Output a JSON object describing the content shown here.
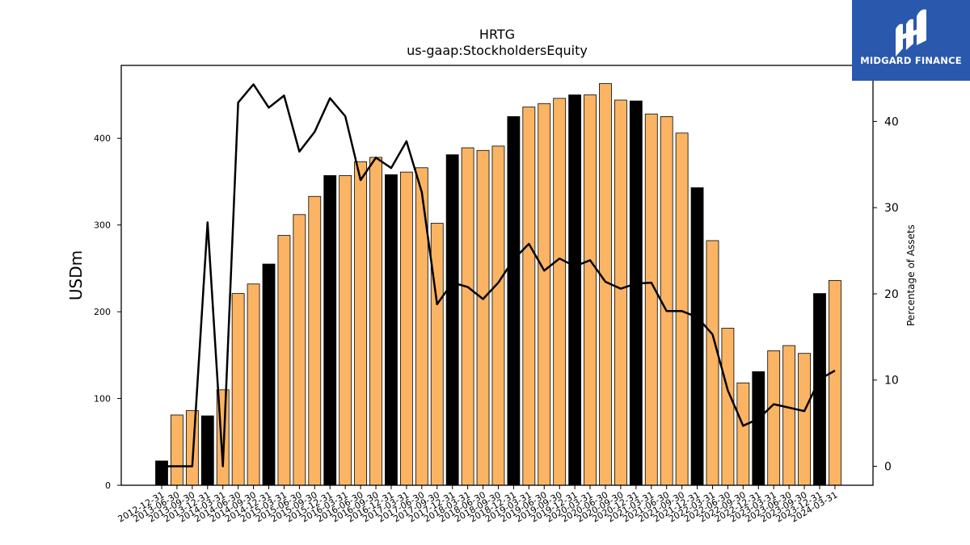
{
  "logo": {
    "text": "MIDGARD FINANCE",
    "bg_color": "#2a58ad",
    "icon": "midgard-m-logo-icon"
  },
  "chart_data": {
    "type": "bar",
    "title": "HRTG",
    "subtitle": "us-gaap:StockholdersEquity",
    "ylabel": "USDm",
    "y2label": "Percentage of Assets",
    "ylim": [
      0,
      484
    ],
    "y2lim": [
      -2.2,
      46.5
    ],
    "yticks": [
      0,
      100,
      200,
      300,
      400
    ],
    "y2ticks": [
      0,
      10,
      20,
      30,
      40
    ],
    "bar_color": "#fbb463",
    "highlight_color": "#000000",
    "line_color": "#000000",
    "categories": [
      "2012-12-31",
      "2013-06-30",
      "2013-09-30",
      "2013-12-31",
      "2014-03-31",
      "2014-06-30",
      "2014-09-30",
      "2014-12-31",
      "2015-03-31",
      "2015-06-30",
      "2015-09-30",
      "2015-12-31",
      "2016-03-31",
      "2016-06-30",
      "2016-09-30",
      "2016-12-31",
      "2017-03-31",
      "2017-06-30",
      "2017-09-30",
      "2017-12-31",
      "2018-03-31",
      "2018-06-30",
      "2018-09-30",
      "2018-12-31",
      "2019-03-31",
      "2019-06-30",
      "2019-09-30",
      "2019-12-31",
      "2020-03-31",
      "2020-06-30",
      "2020-09-30",
      "2020-12-31",
      "2021-03-31",
      "2021-06-30",
      "2021-09-30",
      "2021-12-31",
      "2022-03-31",
      "2022-06-30",
      "2022-09-30",
      "2022-12-31",
      "2023-03-31",
      "2023-06-30",
      "2023-09-30",
      "2023-12-31",
      "2024-03-31"
    ],
    "series": [
      {
        "type": "bar",
        "values": [
          28,
          81,
          86,
          80,
          110,
          221,
          232,
          255,
          288,
          312,
          333,
          357,
          357,
          373,
          378,
          358,
          361,
          366,
          302,
          381,
          389,
          386,
          391,
          425,
          436,
          440,
          446,
          450,
          450,
          463,
          444,
          443,
          428,
          425,
          406,
          343,
          282,
          181,
          118,
          131,
          155,
          161,
          152,
          221,
          236
        ],
        "highlighted": [
          true,
          false,
          false,
          true,
          false,
          false,
          false,
          true,
          false,
          false,
          false,
          true,
          false,
          false,
          false,
          true,
          false,
          false,
          false,
          true,
          false,
          false,
          false,
          true,
          false,
          false,
          false,
          true,
          false,
          false,
          false,
          true,
          false,
          false,
          false,
          true,
          false,
          false,
          false,
          true,
          false,
          false,
          false,
          true,
          false
        ]
      },
      {
        "type": "line",
        "axis": "right",
        "values": [
          0,
          0,
          0,
          28.3,
          0,
          42.2,
          44.3,
          41.6,
          43.0,
          36.5,
          38.8,
          42.7,
          40.6,
          33.2,
          35.8,
          34.6,
          37.7,
          31.8,
          18.8,
          21.3,
          20.8,
          19.4,
          21.3,
          24.0,
          25.8,
          22.7,
          24.1,
          23.2,
          23.9,
          21.4,
          20.6,
          21.2,
          21.3,
          18.0,
          18.0,
          17.3,
          15.3,
          8.8,
          4.7,
          5.5,
          7.2,
          6.8,
          6.4,
          10.1,
          11.1
        ]
      }
    ]
  }
}
